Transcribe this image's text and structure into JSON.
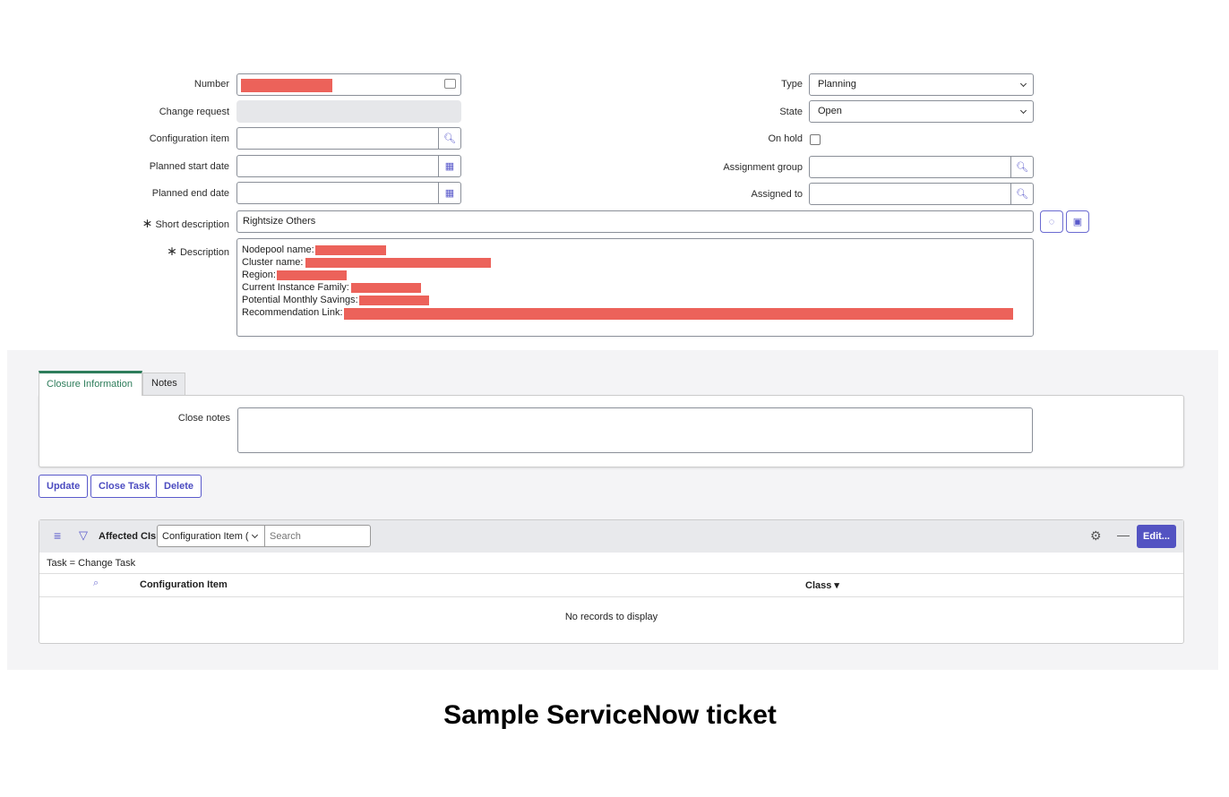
{
  "form": {
    "number_label": "Number",
    "change_request_label": "Change request",
    "config_item_label": "Configuration item",
    "planned_start_label": "Planned start date",
    "planned_end_label": "Planned end date",
    "short_desc_label": "Short description",
    "short_desc_value": "Rightsize Others",
    "description_label": "Description",
    "required_mark": "∗",
    "description_lines": [
      "Nodepool name:",
      "Cluster name:",
      "Region:",
      "Current Instance Family:",
      "Potential Monthly Savings:",
      "Recommendation Link:"
    ],
    "type_label": "Type",
    "type_value": "Planning",
    "state_label": "State",
    "state_value": "Open",
    "on_hold_label": "On hold",
    "on_hold_checked": false,
    "assignment_group_label": "Assignment group",
    "assigned_to_label": "Assigned to",
    "redaction_color": "#ec625a"
  },
  "tabs": [
    {
      "label": "Closure Information",
      "active": true
    },
    {
      "label": "Notes",
      "active": false
    }
  ],
  "closure": {
    "close_notes_label": "Close notes"
  },
  "buttons": {
    "update": "Update",
    "close_task": "Close Task",
    "delete": "Delete"
  },
  "related": {
    "title": "Affected CIs",
    "field_select": "Configuration Item (",
    "search_placeholder": "Search",
    "filter_text": "Task = Change Task",
    "columns": [
      "Configuration Item",
      "Class"
    ],
    "empty_text": "No records to display",
    "edit_label": "Edit...",
    "accent": "#5353c2"
  },
  "caption": "Sample ServiceNow ticket"
}
